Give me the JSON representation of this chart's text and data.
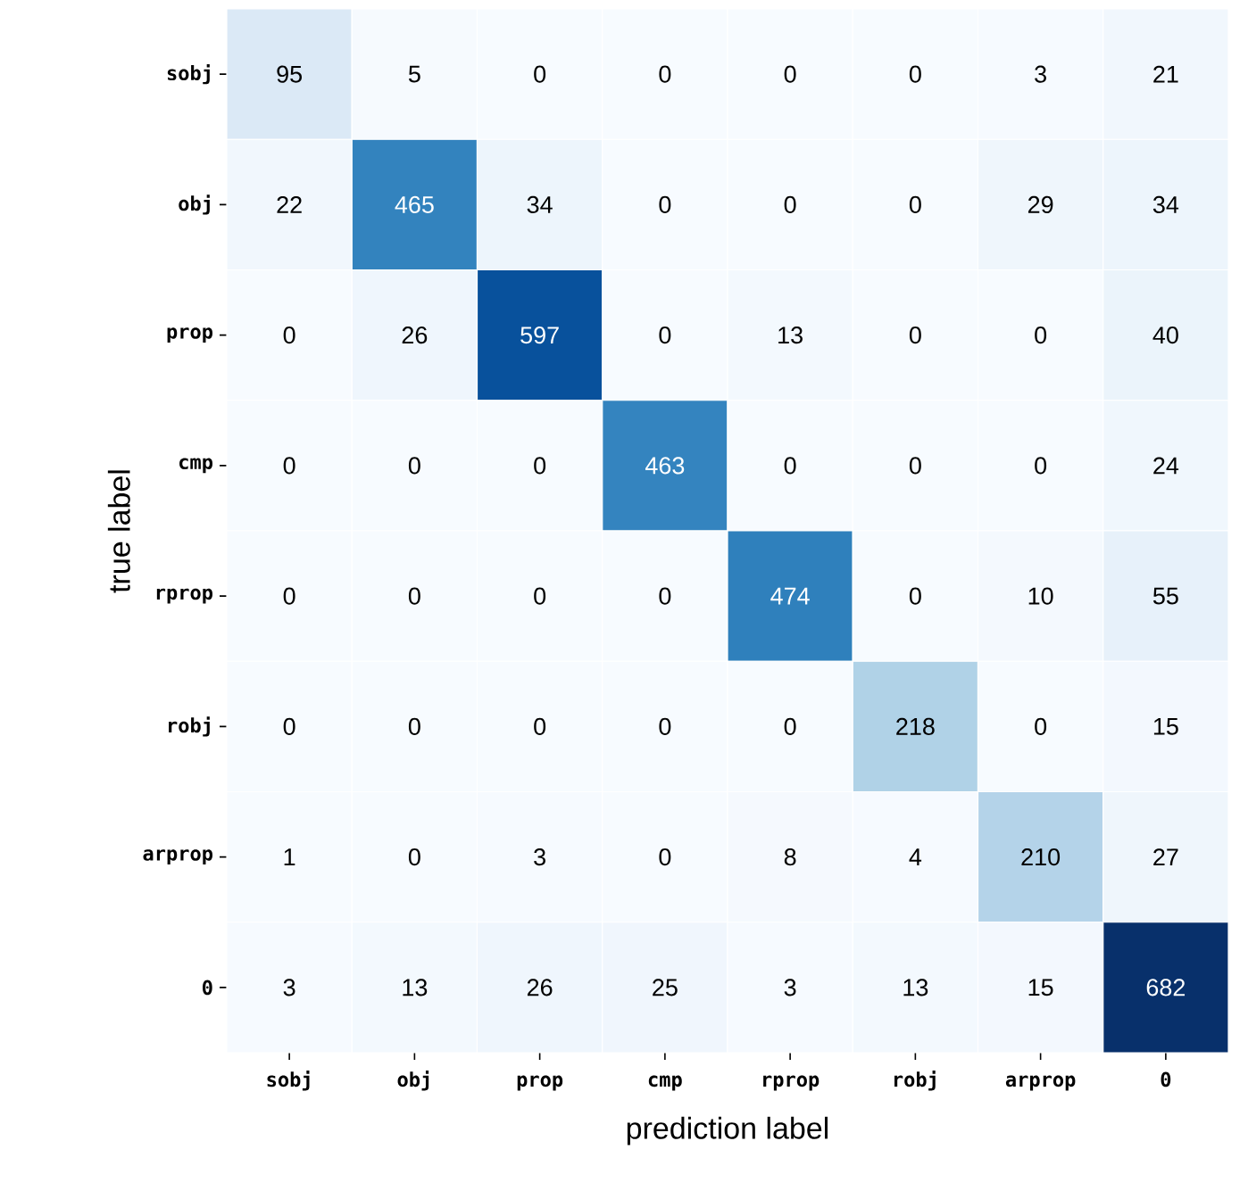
{
  "chart_data": {
    "type": "heatmap",
    "xlabel": "prediction label",
    "ylabel": "true label",
    "categories": [
      "sobj",
      "obj",
      "prop",
      "cmp",
      "rprop",
      "robj",
      "arprop",
      "0"
    ],
    "y_categories": [
      "sobj",
      "obj",
      "prop",
      "cmp",
      "rprop",
      "robj",
      "arprop",
      "0"
    ],
    "cells": [
      [
        95,
        5,
        0,
        0,
        0,
        0,
        3,
        21
      ],
      [
        22,
        465,
        34,
        0,
        0,
        0,
        29,
        34
      ],
      [
        0,
        26,
        597,
        0,
        13,
        0,
        0,
        40
      ],
      [
        0,
        0,
        0,
        463,
        0,
        0,
        0,
        24
      ],
      [
        0,
        0,
        0,
        0,
        474,
        0,
        10,
        55
      ],
      [
        0,
        0,
        0,
        0,
        0,
        218,
        0,
        15
      ],
      [
        1,
        0,
        3,
        0,
        8,
        4,
        210,
        27
      ],
      [
        3,
        13,
        26,
        25,
        3,
        13,
        15,
        682
      ]
    ],
    "data_labels": true
  }
}
